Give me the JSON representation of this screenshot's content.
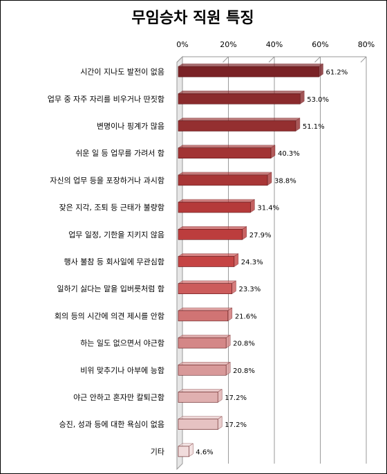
{
  "chart_data": {
    "type": "bar",
    "orientation": "horizontal",
    "title": "무임승차 직원 특징",
    "categories": [
      "시간이 지나도 발전이 없음",
      "업무 중 자주 자리를 비우거나 딴짓함",
      "변명이나 핑계가 많음",
      "쉬운 일 등 업무를 가려서 함",
      "자신의 업무 등을 포장하거나 과시함",
      "잦은 지각, 조퇴 등 근태가 불량함",
      "업무 일정, 기한을 지키지 않음",
      "행사 불참 등 회사일에 무관심함",
      "일하기 싫다는 말을 입버릇처럼 함",
      "회의 등의 시간에 의견 제시를 안함",
      "하는 일도 없으면서 야근함",
      "비위 맞추기나 아부에 능함",
      "야근 안하고 혼자만 칼퇴근함",
      "승진, 성과 등에 대한 욕심이 없음",
      "기타"
    ],
    "values": [
      61.2,
      53.0,
      51.1,
      40.3,
      38.8,
      31.4,
      27.9,
      24.3,
      23.3,
      21.6,
      20.8,
      20.8,
      17.2,
      17.2,
      4.6
    ],
    "value_labels": [
      "61.2%",
      "53.0%",
      "51.1%",
      "40.3%",
      "38.8%",
      "31.4%",
      "27.9%",
      "24.3%",
      "23.3%",
      "21.6%",
      "20.8%",
      "20.8%",
      "17.2%",
      "17.2%",
      "4.6%"
    ],
    "x_ticks": [
      "0%",
      "20%",
      "40%",
      "60%",
      "80%"
    ],
    "xlim": [
      0,
      80
    ],
    "axis_position": "top",
    "grid": true,
    "legend": "none",
    "colors": [
      "#7a2226",
      "#8a2a2c",
      "#942f30",
      "#a23434",
      "#a83636",
      "#b53a3a",
      "#bc3d3d",
      "#c54444",
      "#cc5c5c",
      "#d07474",
      "#d48787",
      "#d89999",
      "#e0b0b0",
      "#e6c2c2",
      "#f1dcdc"
    ]
  }
}
